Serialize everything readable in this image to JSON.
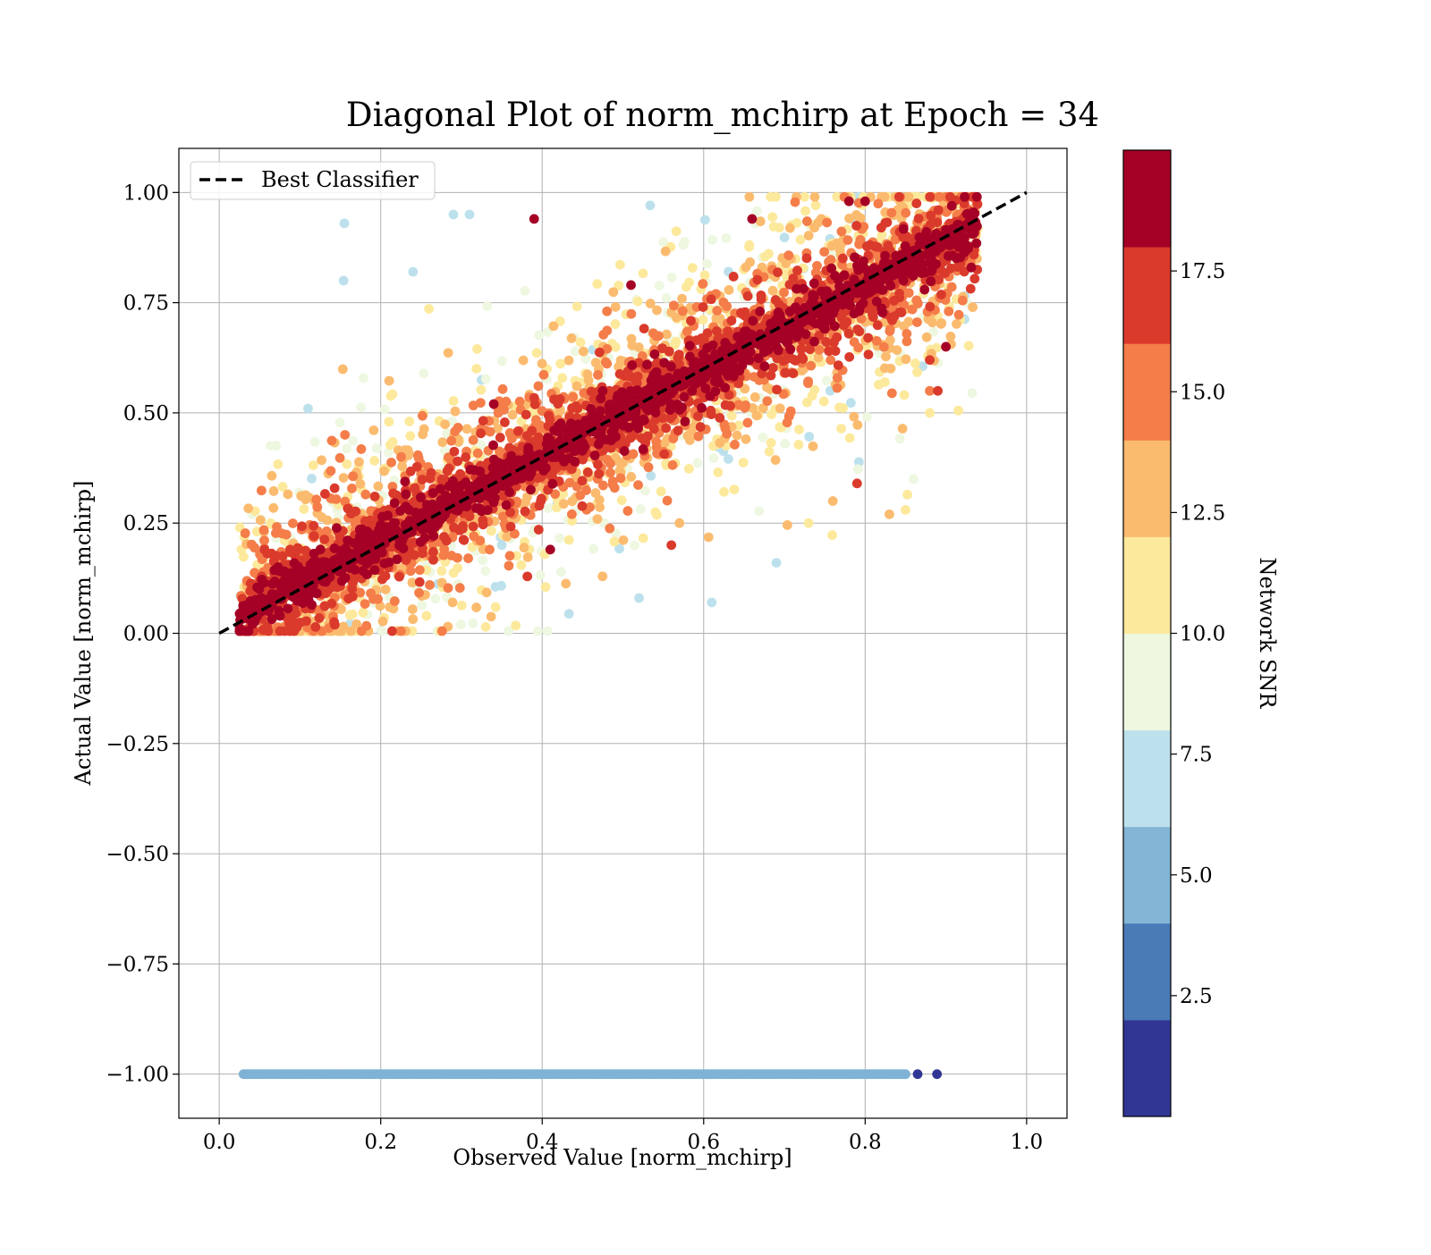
{
  "colors": {
    "diagonal": "#000000",
    "grid": "#b0b0b0",
    "floor_points": "#7fb2d4"
  },
  "chart_data": {
    "type": "scatter",
    "title": "Diagonal Plot of norm_mchirp at Epoch = 34",
    "xlabel": "Observed Value [norm_mchirp]",
    "ylabel": "Actual Value [norm_mchirp]",
    "xlim": [
      -0.05,
      1.05
    ],
    "ylim": [
      -1.1,
      1.1
    ],
    "xticks": [
      0.0,
      0.2,
      0.4,
      0.6,
      0.8,
      1.0
    ],
    "xtick_labels": [
      "0.0",
      "0.2",
      "0.4",
      "0.6",
      "0.8",
      "1.0"
    ],
    "yticks": [
      -1.0,
      -0.75,
      -0.5,
      -0.25,
      0.0,
      0.25,
      0.5,
      0.75,
      1.0
    ],
    "ytick_labels": [
      "−1.00",
      "−0.75",
      "−0.50",
      "−0.25",
      "0.00",
      "0.25",
      "0.50",
      "0.75",
      "1.00"
    ],
    "grid": true,
    "legend": {
      "location": "upper-left",
      "entries": [
        {
          "label": "Best Classifier",
          "style": "dashed-line",
          "color": "#000000"
        }
      ]
    },
    "diagonal_line": {
      "label": "Best Classifier",
      "x": [
        0.0,
        1.0
      ],
      "y": [
        0.0,
        1.0
      ],
      "style": "dashed"
    },
    "floor_band": {
      "y": -1.0,
      "x_range": [
        0.03,
        0.85
      ],
      "snr_range": [
        4.5,
        5.5
      ]
    },
    "floor_outliers": [
      {
        "x": 0.865,
        "y": -1.0,
        "snr": 1.5
      },
      {
        "x": 0.889,
        "y": -1.0,
        "snr": 1.5
      }
    ],
    "points": [
      {
        "x": 0.155,
        "y": 0.93,
        "snr": 7
      },
      {
        "x": 0.154,
        "y": 0.8,
        "snr": 7
      },
      {
        "x": 0.39,
        "y": 0.94,
        "snr": 18
      },
      {
        "x": 0.29,
        "y": 0.95,
        "snr": 7
      },
      {
        "x": 0.31,
        "y": 0.95,
        "snr": 7
      },
      {
        "x": 0.24,
        "y": 0.82,
        "snr": 7
      },
      {
        "x": 0.11,
        "y": 0.51,
        "snr": 7
      },
      {
        "x": 0.35,
        "y": 0.2,
        "snr": 7
      },
      {
        "x": 0.52,
        "y": 0.08,
        "snr": 7
      },
      {
        "x": 0.61,
        "y": 0.07,
        "snr": 7
      },
      {
        "x": 0.69,
        "y": 0.16,
        "snr": 7
      },
      {
        "x": 0.85,
        "y": 0.28,
        "snr": 11
      },
      {
        "x": 0.83,
        "y": 0.27,
        "snr": 12
      },
      {
        "x": 0.86,
        "y": 0.35,
        "snr": 9
      },
      {
        "x": 0.88,
        "y": 0.5,
        "snr": 11
      },
      {
        "x": 0.88,
        "y": 0.55,
        "snr": 14
      },
      {
        "x": 0.9,
        "y": 0.65,
        "snr": 18
      },
      {
        "x": 0.88,
        "y": 0.62,
        "snr": 16
      },
      {
        "x": 0.89,
        "y": 0.55,
        "snr": 16
      },
      {
        "x": 0.34,
        "y": 0.52,
        "snr": 18
      },
      {
        "x": 0.56,
        "y": 0.2,
        "snr": 16
      },
      {
        "x": 0.41,
        "y": 0.19,
        "snr": 18
      },
      {
        "x": 0.51,
        "y": 0.79,
        "snr": 18
      },
      {
        "x": 0.66,
        "y": 0.94,
        "snr": 18
      },
      {
        "x": 0.78,
        "y": 0.98,
        "snr": 18
      },
      {
        "x": 0.8,
        "y": 0.98,
        "snr": 18
      },
      {
        "x": 0.79,
        "y": 0.34,
        "snr": 16
      },
      {
        "x": 0.76,
        "y": 0.3,
        "snr": 12
      },
      {
        "x": 0.73,
        "y": 0.25,
        "snr": 11
      },
      {
        "x": 0.57,
        "y": 0.25,
        "snr": 12
      }
    ],
    "colorbar": {
      "label": "Network SNR",
      "ticks": [
        2.5,
        5.0,
        7.5,
        10.0,
        12.5,
        15.0,
        17.5
      ],
      "tick_labels": [
        "2.5",
        "5.0",
        "7.5",
        "10.0",
        "12.5",
        "15.0",
        "17.5"
      ],
      "range": [
        0,
        20
      ],
      "bands": [
        {
          "from": 0,
          "to": 2,
          "color": "#313695"
        },
        {
          "from": 2,
          "to": 4,
          "color": "#4a7bb7"
        },
        {
          "from": 4,
          "to": 6,
          "color": "#84b5d6"
        },
        {
          "from": 6,
          "to": 8,
          "color": "#bde1ec"
        },
        {
          "from": 8,
          "to": 10,
          "color": "#eef7e0"
        },
        {
          "from": 10,
          "to": 12,
          "color": "#fde99c"
        },
        {
          "from": 12,
          "to": 14,
          "color": "#fbbb6f"
        },
        {
          "from": 14,
          "to": 16,
          "color": "#f47d4a"
        },
        {
          "from": 16,
          "to": 18,
          "color": "#da3a2c"
        },
        {
          "from": 18,
          "to": 20,
          "color": "#a50026"
        }
      ]
    }
  }
}
